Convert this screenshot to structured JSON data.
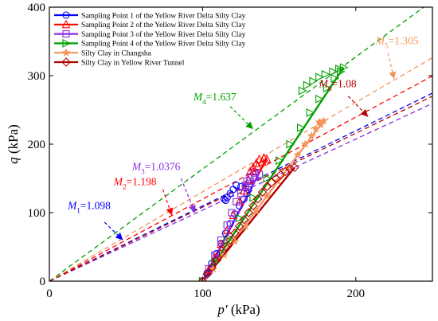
{
  "chart_data": {
    "type": "scatter",
    "xlabel": "p′ (kPa)",
    "ylabel": "q (kPa)",
    "xlabel_main": "p′",
    "xlabel_unit": " (kPa)",
    "ylabel_main": "q",
    "ylabel_unit": " (kPa)",
    "xlim": [
      0,
      250
    ],
    "ylim": [
      0,
      400
    ],
    "xticks": [
      0,
      100,
      200
    ],
    "yticks": [
      0,
      100,
      200,
      300,
      400
    ],
    "legend_position": "top-left",
    "grid": false,
    "series": [
      {
        "name": "Sampling Point 1 of the Yellow River Delta Silty Clay",
        "color": "#0000ff",
        "marker": "circle",
        "points": [
          [
            100,
            0
          ],
          [
            103,
            12
          ],
          [
            106,
            26
          ],
          [
            109,
            40
          ],
          [
            112,
            55
          ],
          [
            115,
            70
          ],
          [
            118,
            84
          ],
          [
            121,
            98
          ],
          [
            124,
            110
          ],
          [
            127,
            120
          ],
          [
            129,
            128
          ],
          [
            130,
            134
          ],
          [
            125,
            138
          ],
          [
            122,
            140
          ],
          [
            120,
            134
          ],
          [
            118,
            128
          ],
          [
            116,
            122
          ],
          [
            115,
            118
          ],
          [
            114,
            120
          ]
        ]
      },
      {
        "name": "Sampling Point 2 of the Yellow River Delta Silty Clay",
        "color": "#ff0000",
        "marker": "triangle",
        "points": [
          [
            100,
            0
          ],
          [
            104,
            16
          ],
          [
            108,
            34
          ],
          [
            112,
            54
          ],
          [
            116,
            74
          ],
          [
            120,
            96
          ],
          [
            124,
            116
          ],
          [
            127,
            132
          ],
          [
            130,
            148
          ],
          [
            133,
            160
          ],
          [
            136,
            168
          ],
          [
            139,
            174
          ],
          [
            142,
            178
          ],
          [
            140,
            180
          ],
          [
            137,
            178
          ],
          [
            135,
            172
          ],
          [
            133,
            166
          ],
          [
            131,
            160
          ]
        ]
      },
      {
        "name": "Sampling Point 3 of the Yellow River Delta Silty Clay",
        "color": "#8a2be2",
        "marker": "square",
        "points": [
          [
            100,
            0
          ],
          [
            104,
            18
          ],
          [
            108,
            38
          ],
          [
            112,
            60
          ],
          [
            116,
            82
          ],
          [
            119,
            100
          ],
          [
            122,
            116
          ],
          [
            125,
            128
          ],
          [
            128,
            138
          ],
          [
            131,
            146
          ],
          [
            134,
            152
          ],
          [
            137,
            156
          ],
          [
            134,
            158
          ],
          [
            131,
            152
          ],
          [
            129,
            146
          ],
          [
            128,
            140
          ]
        ]
      },
      {
        "name": "Sampling Point 4 of the Yellow River Delta Silty Clay",
        "color": "#00a000",
        "marker": "triangle-right",
        "points": [
          [
            100,
            0
          ],
          [
            108,
            28
          ],
          [
            116,
            60
          ],
          [
            124,
            92
          ],
          [
            133,
            122
          ],
          [
            142,
            150
          ],
          [
            150,
            176
          ],
          [
            157,
            200
          ],
          [
            164,
            224
          ],
          [
            170,
            246
          ],
          [
            176,
            266
          ],
          [
            181,
            282
          ],
          [
            186,
            296
          ],
          [
            190,
            306
          ],
          [
            192,
            312
          ],
          [
            189,
            310
          ],
          [
            185,
            306
          ],
          [
            180,
            302
          ],
          [
            176,
            298
          ],
          [
            172,
            292
          ],
          [
            168,
            286
          ],
          [
            165,
            278
          ]
        ]
      },
      {
        "name": "Silty Clay in Changsha",
        "color": "#f4955c",
        "marker": "star",
        "points": [
          [
            100,
            0
          ],
          [
            107,
            18
          ],
          [
            114,
            38
          ],
          [
            121,
            58
          ],
          [
            128,
            80
          ],
          [
            135,
            102
          ],
          [
            142,
            124
          ],
          [
            149,
            146
          ],
          [
            156,
            166
          ],
          [
            162,
            184
          ],
          [
            167,
            200
          ],
          [
            171,
            212
          ],
          [
            174,
            222
          ],
          [
            177,
            228
          ],
          [
            179,
            234
          ],
          [
            176,
            232
          ]
        ]
      },
      {
        "name": "Silty Clay  in Yellow River Tunnel",
        "color": "#b00000",
        "marker": "diamond",
        "points": [
          [
            100,
            0
          ],
          [
            103,
            10
          ],
          [
            106,
            20
          ],
          [
            109,
            30
          ],
          [
            112,
            40
          ],
          [
            115,
            50
          ],
          [
            118,
            60
          ],
          [
            121,
            70
          ],
          [
            124,
            80
          ],
          [
            127,
            90
          ],
          [
            130,
            100
          ],
          [
            133,
            110
          ],
          [
            136,
            120
          ],
          [
            139,
            130
          ],
          [
            142,
            138
          ],
          [
            145,
            144
          ],
          [
            148,
            150
          ],
          [
            151,
            155
          ],
          [
            154,
            160
          ],
          [
            157,
            164
          ],
          [
            160,
            166
          ]
        ]
      }
    ],
    "fit_lines": [
      {
        "series": 0,
        "color": "#0000ff",
        "p0": [
          100,
          0
        ],
        "p1": [
          130,
          128
        ]
      },
      {
        "series": 1,
        "color": "#ff0000",
        "p0": [
          100,
          0
        ],
        "p1": [
          142,
          180
        ]
      },
      {
        "series": 2,
        "color": "#8a2be2",
        "p0": [
          100,
          0
        ],
        "p1": [
          137,
          158
        ]
      },
      {
        "series": 3,
        "color": "#00a000",
        "p0": [
          100,
          0
        ],
        "p1": [
          192,
          312
        ]
      },
      {
        "series": 4,
        "color": "#f4955c",
        "p0": [
          100,
          0
        ],
        "p1": [
          179,
          234
        ]
      },
      {
        "series": 5,
        "color": "#b00000",
        "p0": [
          100,
          0
        ],
        "p1": [
          160,
          166
        ]
      }
    ],
    "csl_lines": [
      {
        "slope": 1.098,
        "color": "#0000ff"
      },
      {
        "slope": 1.198,
        "color": "#ff0000"
      },
      {
        "slope": 1.0376,
        "color": "#8a2be2"
      },
      {
        "slope": 1.637,
        "color": "#00a000"
      },
      {
        "slope": 1.305,
        "color": "#f4955c"
      },
      {
        "slope": 1.08,
        "color": "#b00000"
      }
    ],
    "annotations": [
      {
        "letter": "M",
        "sub": "1",
        "value": "=1.098",
        "color": "#0000ff",
        "text_at": [
          12,
          105
        ],
        "arrow_from": [
          36,
          86
        ],
        "arrow_to": [
          48,
          60
        ]
      },
      {
        "letter": "M",
        "sub": "2",
        "value": "=1.198",
        "color": "#ff0000",
        "text_at": [
          42,
          140
        ],
        "arrow_from": [
          74,
          134
        ],
        "arrow_to": [
          80,
          96
        ]
      },
      {
        "letter": "M",
        "sub": "3",
        "value": "=1.0376",
        "color": "#8a2be2",
        "text_at": [
          54,
          162
        ],
        "arrow_from": [
          86,
          150
        ],
        "arrow_to": [
          95,
          100
        ]
      },
      {
        "letter": "M",
        "sub": "4",
        "value": "=1.637",
        "color": "#00a000",
        "text_at": [
          94,
          264
        ],
        "arrow_from": [
          118,
          255
        ],
        "arrow_to": [
          133,
          222
        ]
      },
      {
        "letter": "M",
        "sub": "5",
        "value": "=1.305",
        "color": "#f4955c",
        "text_at": [
          213,
          346
        ],
        "arrow_from": [
          221,
          333
        ],
        "arrow_to": [
          225,
          295
        ]
      },
      {
        "letter": "M",
        "sub": "6",
        "value": "=1.08",
        "color": "#b00000",
        "text_at": [
          176,
          283
        ],
        "arrow_from": [
          195,
          270
        ],
        "arrow_to": [
          208,
          240
        ]
      }
    ]
  }
}
